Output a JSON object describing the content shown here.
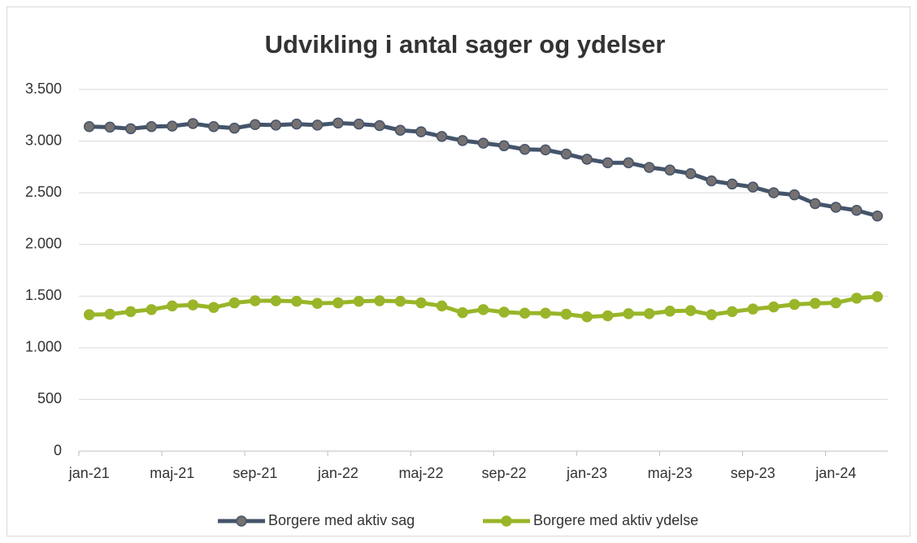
{
  "chart_data": {
    "type": "line",
    "title": "Udvikling i antal sager og ydelser",
    "categories": [
      "jan-21",
      null,
      null,
      null,
      "maj-21",
      null,
      null,
      null,
      "sep-21",
      null,
      null,
      null,
      "jan-22",
      null,
      null,
      null,
      "maj-22",
      null,
      null,
      null,
      "sep-22",
      null,
      null,
      null,
      "jan-23",
      null,
      null,
      null,
      "maj-23",
      null,
      null,
      null,
      "sep-23",
      null,
      null,
      null,
      "jan-24",
      null,
      null
    ],
    "series": [
      {
        "name": "Borgere med aktiv sag",
        "color": "#44546a",
        "marker_color": "#767171",
        "values": [
          3140,
          3135,
          3120,
          3140,
          3145,
          3170,
          3140,
          3125,
          3160,
          3155,
          3165,
          3155,
          3175,
          3165,
          3150,
          3105,
          3090,
          3045,
          3005,
          2980,
          2955,
          2920,
          2915,
          2875,
          2825,
          2790,
          2790,
          2745,
          2720,
          2685,
          2615,
          2585,
          2555,
          2500,
          2480,
          2395,
          2360,
          2330,
          2275
        ]
      },
      {
        "name": "Borgere med aktiv ydelse",
        "color": "#99b529",
        "marker_color": "#99b529",
        "values": [
          1320,
          1325,
          1350,
          1370,
          1405,
          1415,
          1390,
          1435,
          1455,
          1455,
          1450,
          1430,
          1435,
          1450,
          1455,
          1450,
          1435,
          1405,
          1340,
          1370,
          1345,
          1335,
          1335,
          1325,
          1300,
          1310,
          1330,
          1330,
          1355,
          1360,
          1320,
          1350,
          1375,
          1395,
          1420,
          1430,
          1435,
          1480,
          1495
        ]
      }
    ],
    "ylim": [
      0,
      3500
    ],
    "yticks": [
      0,
      500,
      {
        "value": 1000,
        "label": "1.000"
      },
      {
        "value": 1500,
        "label": "1.500"
      },
      {
        "value": 2000,
        "label": "2.000"
      },
      {
        "value": 2500,
        "label": "2.500"
      },
      {
        "value": 3000,
        "label": "3.000"
      },
      {
        "value": 3500,
        "label": "3.500"
      }
    ],
    "grid": true,
    "legend": "bottom"
  }
}
